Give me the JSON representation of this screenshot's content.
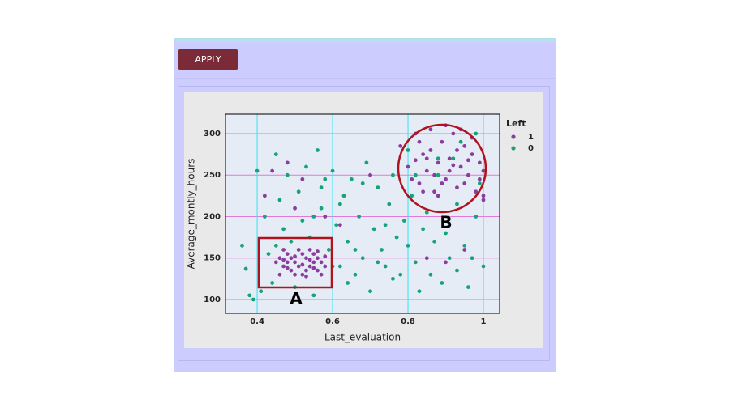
{
  "button": {
    "label": "APPLY"
  },
  "chart_data": {
    "type": "scatter",
    "x_label": "Last_evaluation",
    "y_label": "Average_montly_hours",
    "legend_title": "Left",
    "legend_position": "right",
    "xlim": [
      0.316,
      1.043
    ],
    "ylim": [
      83.4,
      323.4
    ],
    "xticks": [
      0.4,
      0.6,
      0.8,
      1
    ],
    "yticks": [
      100,
      150,
      200,
      250,
      300
    ],
    "grid": true,
    "xgrid_color": "#2ee6f2",
    "ygrid_color": "#e27ad6",
    "annotations": [
      {
        "text": "A"
      },
      {
        "text": "B"
      }
    ],
    "series": [
      {
        "name": "1",
        "color": "#8a3d9c",
        "x": [
          0.46,
          0.47,
          0.48,
          0.49,
          0.5,
          0.51,
          0.52,
          0.53,
          0.54,
          0.55,
          0.56,
          0.57,
          0.46,
          0.47,
          0.48,
          0.49,
          0.5,
          0.51,
          0.52,
          0.53,
          0.54,
          0.55,
          0.56,
          0.57,
          0.58,
          0.45,
          0.48,
          0.5,
          0.52,
          0.54,
          0.56,
          0.58,
          0.47,
          0.53,
          0.55,
          0.78,
          0.8,
          0.82,
          0.83,
          0.84,
          0.85,
          0.86,
          0.87,
          0.88,
          0.89,
          0.9,
          0.91,
          0.92,
          0.93,
          0.94,
          0.95,
          0.96,
          0.97,
          0.98,
          0.99,
          1,
          0.81,
          0.83,
          0.85,
          0.87,
          0.89,
          0.91,
          0.93,
          0.95,
          0.97,
          0.99,
          0.86,
          0.88,
          0.92,
          0.94,
          1,
          0.9,
          0.84,
          0.96,
          0.82,
          0.42,
          0.44,
          0.48,
          0.52,
          0.58,
          0.62,
          0.85,
          0.9,
          0.95,
          1,
          0.5,
          0.7
        ],
        "values": [
          150,
          140,
          155,
          135,
          145,
          160,
          130,
          150,
          140,
          155,
          135,
          145,
          130,
          160,
          145,
          150,
          130,
          140,
          155,
          135,
          160,
          145,
          150,
          130,
          140,
          145,
          138,
          152,
          142,
          148,
          158,
          152,
          148,
          128,
          138,
          285,
          260,
          300,
          240,
          275,
          255,
          305,
          230,
          265,
          290,
          245,
          270,
          300,
          235,
          260,
          285,
          250,
          275,
          230,
          265,
          255,
          245,
          290,
          270,
          250,
          240,
          255,
          280,
          240,
          295,
          245,
          280,
          225,
          262,
          305,
          225,
          310,
          230,
          268,
          268,
          225,
          255,
          265,
          245,
          200,
          190,
          150,
          145,
          160,
          220,
          210,
          250
        ]
      },
      {
        "name": "0",
        "color": "#16a37a",
        "x": [
          0.36,
          0.37,
          0.38,
          0.39,
          0.4,
          0.41,
          0.42,
          0.43,
          0.44,
          0.45,
          0.46,
          0.47,
          0.48,
          0.49,
          0.5,
          0.51,
          0.52,
          0.53,
          0.54,
          0.55,
          0.56,
          0.57,
          0.58,
          0.59,
          0.6,
          0.61,
          0.62,
          0.63,
          0.64,
          0.65,
          0.66,
          0.67,
          0.68,
          0.69,
          0.7,
          0.71,
          0.72,
          0.73,
          0.74,
          0.75,
          0.76,
          0.77,
          0.78,
          0.79,
          0.8,
          0.81,
          0.82,
          0.83,
          0.84,
          0.85,
          0.86,
          0.87,
          0.88,
          0.89,
          0.9,
          0.91,
          0.92,
          0.93,
          0.94,
          0.95,
          0.96,
          0.97,
          0.98,
          0.99,
          1,
          0.57,
          0.62,
          0.66,
          0.72,
          0.76,
          0.82,
          0.88,
          0.93,
          0.6,
          0.68,
          0.74,
          0.8,
          0.98,
          0.55,
          0.45,
          0.64
        ],
        "values": [
          165,
          137,
          105,
          100,
          255,
          110,
          200,
          155,
          120,
          275,
          220,
          185,
          250,
          170,
          115,
          230,
          195,
          260,
          175,
          105,
          280,
          210,
          245,
          160,
          255,
          190,
          140,
          225,
          170,
          245,
          130,
          200,
          150,
          265,
          110,
          185,
          235,
          160,
          140,
          215,
          250,
          175,
          130,
          195,
          165,
          225,
          145,
          110,
          185,
          205,
          130,
          170,
          250,
          120,
          180,
          150,
          270,
          135,
          290,
          165,
          115,
          150,
          200,
          240,
          140,
          235,
          215,
          160,
          145,
          125,
          250,
          270,
          215,
          140,
          240,
          190,
          280,
          300,
          200,
          165,
          120
        ]
      }
    ]
  }
}
